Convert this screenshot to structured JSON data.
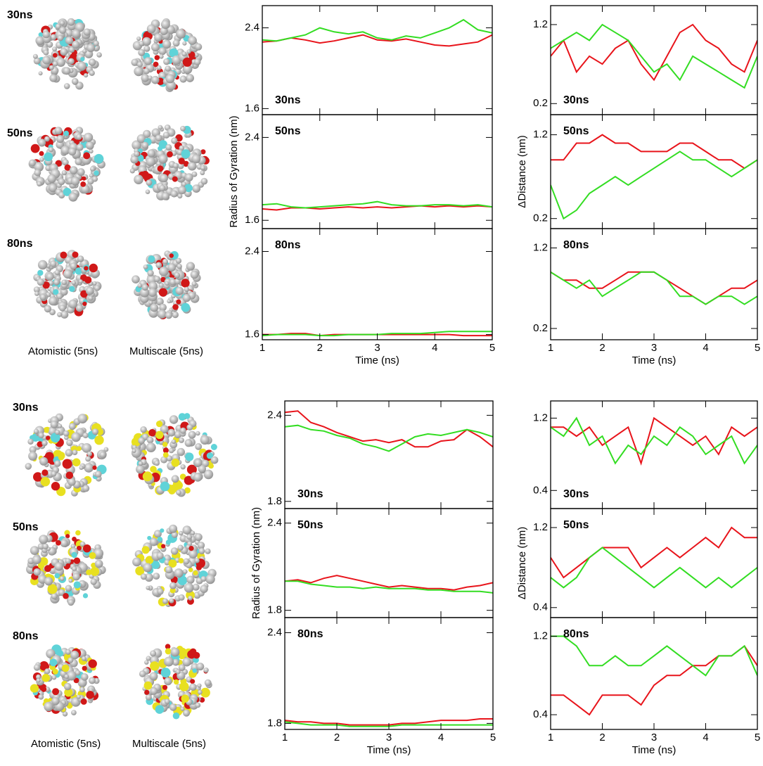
{
  "chart_data": [
    {
      "type": "line",
      "annotation": "30ns",
      "xlim": [
        1,
        5
      ],
      "xticks": [
        1,
        2,
        3,
        4,
        5
      ],
      "ylim": [
        1.54,
        2.62
      ],
      "yticks": [
        1.6,
        2.4
      ],
      "x": [
        1,
        1.25,
        1.5,
        1.75,
        2,
        2.25,
        2.5,
        2.75,
        3,
        3.25,
        3.5,
        3.75,
        4,
        4.25,
        4.5,
        4.75,
        5
      ],
      "series": [
        {
          "color": "#e8141b",
          "values": [
            2.26,
            2.27,
            2.3,
            2.28,
            2.25,
            2.27,
            2.3,
            2.33,
            2.28,
            2.27,
            2.29,
            2.26,
            2.23,
            2.22,
            2.24,
            2.26,
            2.33
          ]
        },
        {
          "color": "#33dd22",
          "values": [
            2.28,
            2.27,
            2.3,
            2.33,
            2.4,
            2.36,
            2.34,
            2.36,
            2.3,
            2.28,
            2.32,
            2.3,
            2.35,
            2.4,
            2.48,
            2.38,
            2.35
          ]
        }
      ]
    },
    {
      "type": "line",
      "annotation": "50ns",
      "ylabel": "Radius of Gyration (nm)",
      "xlim": [
        1,
        5
      ],
      "xticks": [
        1,
        2,
        3,
        4,
        5
      ],
      "ylim": [
        1.52,
        2.62
      ],
      "yticks": [
        1.6,
        2.4
      ],
      "x": [
        1,
        1.25,
        1.5,
        1.75,
        2,
        2.25,
        2.5,
        2.75,
        3,
        3.25,
        3.5,
        3.75,
        4,
        4.25,
        4.5,
        4.75,
        5
      ],
      "series": [
        {
          "color": "#e8141b",
          "values": [
            1.71,
            1.7,
            1.72,
            1.72,
            1.71,
            1.72,
            1.73,
            1.72,
            1.73,
            1.72,
            1.73,
            1.74,
            1.73,
            1.74,
            1.73,
            1.74,
            1.73
          ]
        },
        {
          "color": "#33dd22",
          "values": [
            1.75,
            1.76,
            1.73,
            1.72,
            1.73,
            1.74,
            1.75,
            1.76,
            1.78,
            1.75,
            1.74,
            1.74,
            1.75,
            1.75,
            1.74,
            1.75,
            1.73
          ]
        }
      ]
    },
    {
      "type": "line",
      "annotation": "80ns",
      "xlabel": "Time (ns)",
      "xlim": [
        1,
        5
      ],
      "xticks": [
        1,
        2,
        3,
        4,
        5
      ],
      "ylim": [
        1.55,
        2.62
      ],
      "yticks": [
        1.6,
        2.4
      ],
      "x": [
        1,
        1.25,
        1.5,
        1.75,
        2,
        2.25,
        2.5,
        2.75,
        3,
        3.25,
        3.5,
        3.75,
        4,
        4.25,
        4.5,
        4.75,
        5
      ],
      "series": [
        {
          "color": "#e8141b",
          "values": [
            1.6,
            1.6,
            1.61,
            1.61,
            1.59,
            1.6,
            1.6,
            1.6,
            1.6,
            1.6,
            1.6,
            1.6,
            1.6,
            1.6,
            1.59,
            1.59,
            1.59
          ]
        },
        {
          "color": "#33dd22",
          "values": [
            1.59,
            1.6,
            1.6,
            1.6,
            1.59,
            1.59,
            1.6,
            1.6,
            1.6,
            1.61,
            1.61,
            1.61,
            1.62,
            1.63,
            1.63,
            1.63,
            1.63
          ]
        }
      ]
    },
    {
      "type": "line",
      "annotation": "30ns",
      "xlim": [
        1,
        5
      ],
      "xticks": [
        1,
        2,
        3,
        4,
        5
      ],
      "ylim": [
        0.06,
        1.44
      ],
      "yticks": [
        0.2,
        1.2
      ],
      "x": [
        1,
        1.25,
        1.5,
        1.75,
        2,
        2.25,
        2.5,
        2.75,
        3,
        3.25,
        3.5,
        3.75,
        4,
        4.25,
        4.5,
        4.75,
        5
      ],
      "series": [
        {
          "color": "#e8141b",
          "values": [
            0.8,
            1.0,
            0.6,
            0.8,
            0.7,
            0.9,
            1.0,
            0.7,
            0.5,
            0.8,
            1.1,
            1.2,
            1.0,
            0.9,
            0.7,
            0.6,
            1.0
          ]
        },
        {
          "color": "#33dd22",
          "values": [
            0.9,
            1.0,
            1.1,
            1.0,
            1.2,
            1.1,
            1.0,
            0.8,
            0.6,
            0.7,
            0.5,
            0.8,
            0.7,
            0.6,
            0.5,
            0.4,
            0.8
          ]
        }
      ]
    },
    {
      "type": "line",
      "annotation": "50ns",
      "ylabel": "ΔDistance (nm)",
      "xlim": [
        1,
        5
      ],
      "xticks": [
        1,
        2,
        3,
        4,
        5
      ],
      "ylim": [
        0.08,
        1.44
      ],
      "yticks": [
        0.2,
        1.2
      ],
      "x": [
        1,
        1.25,
        1.5,
        1.75,
        2,
        2.25,
        2.5,
        2.75,
        3,
        3.25,
        3.5,
        3.75,
        4,
        4.25,
        4.5,
        4.75,
        5
      ],
      "series": [
        {
          "color": "#e8141b",
          "values": [
            0.9,
            0.9,
            1.1,
            1.1,
            1.2,
            1.1,
            1.1,
            1.0,
            1.0,
            1.0,
            1.1,
            1.1,
            1.0,
            0.9,
            0.9,
            0.8,
            0.9
          ]
        },
        {
          "color": "#33dd22",
          "values": [
            0.6,
            0.2,
            0.3,
            0.5,
            0.6,
            0.7,
            0.6,
            0.7,
            0.8,
            0.9,
            1.0,
            0.9,
            0.9,
            0.8,
            0.7,
            0.8,
            0.9
          ]
        }
      ]
    },
    {
      "type": "line",
      "annotation": "80ns",
      "xlabel": "Time (ns)",
      "xlim": [
        1,
        5
      ],
      "xticks": [
        1,
        2,
        3,
        4,
        5
      ],
      "ylim": [
        0.06,
        1.44
      ],
      "yticks": [
        0.2,
        1.2
      ],
      "x": [
        1,
        1.25,
        1.5,
        1.75,
        2,
        2.25,
        2.5,
        2.75,
        3,
        3.25,
        3.5,
        3.75,
        4,
        4.25,
        4.5,
        4.75,
        5
      ],
      "series": [
        {
          "color": "#e8141b",
          "values": [
            0.9,
            0.8,
            0.8,
            0.7,
            0.7,
            0.8,
            0.9,
            0.9,
            0.9,
            0.8,
            0.7,
            0.6,
            0.5,
            0.6,
            0.7,
            0.7,
            0.8
          ]
        },
        {
          "color": "#33dd22",
          "values": [
            0.9,
            0.8,
            0.7,
            0.8,
            0.6,
            0.7,
            0.8,
            0.9,
            0.9,
            0.8,
            0.6,
            0.6,
            0.5,
            0.6,
            0.6,
            0.5,
            0.6
          ]
        }
      ]
    },
    {
      "type": "line",
      "annotation": "30ns",
      "xlim": [
        1,
        5
      ],
      "xticks": [
        1,
        2,
        3,
        4,
        5
      ],
      "ylim": [
        1.75,
        2.5
      ],
      "yticks": [
        1.8,
        2.4
      ],
      "x": [
        1,
        1.25,
        1.5,
        1.75,
        2,
        2.25,
        2.5,
        2.75,
        3,
        3.25,
        3.5,
        3.75,
        4,
        4.25,
        4.5,
        4.75,
        5
      ],
      "series": [
        {
          "color": "#e8141b",
          "values": [
            2.42,
            2.43,
            2.35,
            2.32,
            2.28,
            2.25,
            2.22,
            2.23,
            2.21,
            2.23,
            2.18,
            2.18,
            2.22,
            2.23,
            2.3,
            2.25,
            2.18
          ]
        },
        {
          "color": "#33dd22",
          "values": [
            2.32,
            2.33,
            2.3,
            2.29,
            2.26,
            2.24,
            2.2,
            2.18,
            2.15,
            2.2,
            2.25,
            2.27,
            2.26,
            2.28,
            2.3,
            2.28,
            2.25
          ]
        }
      ]
    },
    {
      "type": "line",
      "annotation": "50ns",
      "ylabel": "Radius of Gyration (nm)",
      "xlim": [
        1,
        5
      ],
      "xticks": [
        1,
        2,
        3,
        4,
        5
      ],
      "ylim": [
        1.75,
        2.5
      ],
      "yticks": [
        1.8,
        2.4
      ],
      "x": [
        1,
        1.25,
        1.5,
        1.75,
        2,
        2.25,
        2.5,
        2.75,
        3,
        3.25,
        3.5,
        3.75,
        4,
        4.25,
        4.5,
        4.75,
        5
      ],
      "series": [
        {
          "color": "#e8141b",
          "values": [
            2.0,
            2.01,
            1.99,
            2.02,
            2.04,
            2.02,
            2.0,
            1.98,
            1.96,
            1.97,
            1.96,
            1.95,
            1.95,
            1.94,
            1.96,
            1.97,
            1.99
          ]
        },
        {
          "color": "#33dd22",
          "values": [
            2.0,
            2.0,
            1.98,
            1.97,
            1.96,
            1.96,
            1.95,
            1.96,
            1.95,
            1.95,
            1.95,
            1.94,
            1.94,
            1.93,
            1.93,
            1.93,
            1.92
          ]
        }
      ]
    },
    {
      "type": "line",
      "annotation": "80ns",
      "xlabel": "Time (ns)",
      "xlim": [
        1,
        5
      ],
      "xticks": [
        1,
        2,
        3,
        4,
        5
      ],
      "ylim": [
        1.76,
        2.5
      ],
      "yticks": [
        1.8,
        2.4
      ],
      "x": [
        1,
        1.25,
        1.5,
        1.75,
        2,
        2.25,
        2.5,
        2.75,
        3,
        3.25,
        3.5,
        3.75,
        4,
        4.25,
        4.5,
        4.75,
        5
      ],
      "series": [
        {
          "color": "#e8141b",
          "values": [
            1.82,
            1.81,
            1.81,
            1.8,
            1.8,
            1.79,
            1.79,
            1.79,
            1.79,
            1.8,
            1.8,
            1.81,
            1.82,
            1.82,
            1.82,
            1.83,
            1.83
          ]
        },
        {
          "color": "#33dd22",
          "values": [
            1.81,
            1.8,
            1.79,
            1.79,
            1.79,
            1.78,
            1.78,
            1.78,
            1.78,
            1.79,
            1.79,
            1.79,
            1.79,
            1.79,
            1.79,
            1.79,
            1.79
          ]
        }
      ]
    },
    {
      "type": "line",
      "annotation": "30ns",
      "xlim": [
        1,
        5
      ],
      "xticks": [
        1,
        2,
        3,
        4,
        5
      ],
      "ylim": [
        0.2,
        1.39
      ],
      "yticks": [
        0.4,
        1.2
      ],
      "x": [
        1,
        1.25,
        1.5,
        1.75,
        2,
        2.25,
        2.5,
        2.75,
        3,
        3.25,
        3.5,
        3.75,
        4,
        4.25,
        4.5,
        4.75,
        5
      ],
      "series": [
        {
          "color": "#e8141b",
          "values": [
            1.1,
            1.1,
            1.0,
            1.1,
            0.9,
            1.0,
            1.1,
            0.7,
            1.2,
            1.1,
            1.0,
            0.9,
            1.0,
            0.8,
            1.1,
            1.0,
            1.1
          ]
        },
        {
          "color": "#33dd22",
          "values": [
            1.1,
            1.0,
            1.2,
            0.9,
            1.0,
            0.7,
            0.9,
            0.8,
            1.0,
            0.9,
            1.1,
            1.0,
            0.8,
            0.9,
            1.0,
            0.7,
            0.9
          ]
        }
      ]
    },
    {
      "type": "line",
      "annotation": "50ns",
      "ylabel": "ΔDistance (nm)",
      "xlim": [
        1,
        5
      ],
      "xticks": [
        1,
        2,
        3,
        4,
        5
      ],
      "ylim": [
        0.3,
        1.39
      ],
      "yticks": [
        0.4,
        1.2
      ],
      "x": [
        1,
        1.25,
        1.5,
        1.75,
        2,
        2.25,
        2.5,
        2.75,
        3,
        3.25,
        3.5,
        3.75,
        4,
        4.25,
        4.5,
        4.75,
        5
      ],
      "series": [
        {
          "color": "#e8141b",
          "values": [
            0.9,
            0.7,
            0.8,
            0.9,
            1.0,
            1.0,
            1.0,
            0.8,
            0.9,
            1.0,
            0.9,
            1.0,
            1.1,
            1.0,
            1.2,
            1.1,
            1.1
          ]
        },
        {
          "color": "#33dd22",
          "values": [
            0.7,
            0.6,
            0.7,
            0.9,
            1.0,
            0.9,
            0.8,
            0.7,
            0.6,
            0.7,
            0.8,
            0.7,
            0.6,
            0.7,
            0.6,
            0.7,
            0.8
          ]
        }
      ]
    },
    {
      "type": "line",
      "annotation": "80ns",
      "xlabel": "Time (ns)",
      "xlim": [
        1,
        5
      ],
      "xticks": [
        1,
        2,
        3,
        4,
        5
      ],
      "ylim": [
        0.25,
        1.39
      ],
      "yticks": [
        0.4,
        1.2
      ],
      "x": [
        1,
        1.25,
        1.5,
        1.75,
        2,
        2.25,
        2.5,
        2.75,
        3,
        3.25,
        3.5,
        3.75,
        4,
        4.25,
        4.5,
        4.75,
        5
      ],
      "series": [
        {
          "color": "#e8141b",
          "values": [
            0.6,
            0.6,
            0.5,
            0.4,
            0.6,
            0.6,
            0.6,
            0.5,
            0.7,
            0.8,
            0.8,
            0.9,
            0.9,
            1.0,
            1.0,
            1.1,
            0.9
          ]
        },
        {
          "color": "#33dd22",
          "values": [
            1.2,
            1.2,
            1.1,
            0.9,
            0.9,
            1.0,
            0.9,
            0.9,
            1.0,
            1.1,
            1.0,
            0.9,
            0.8,
            1.0,
            1.0,
            1.1,
            0.8
          ]
        }
      ]
    }
  ],
  "images": [
    {
      "time_labels": [
        "30ns",
        "50ns",
        "80ns"
      ],
      "captions": [
        "Atomistic (5ns)",
        "Multiscale (5ns)"
      ]
    },
    {
      "time_labels": [
        "30ns",
        "50ns",
        "80ns"
      ],
      "captions": [
        "Atomistic (5ns)",
        "Multiscale (5ns)"
      ]
    }
  ]
}
